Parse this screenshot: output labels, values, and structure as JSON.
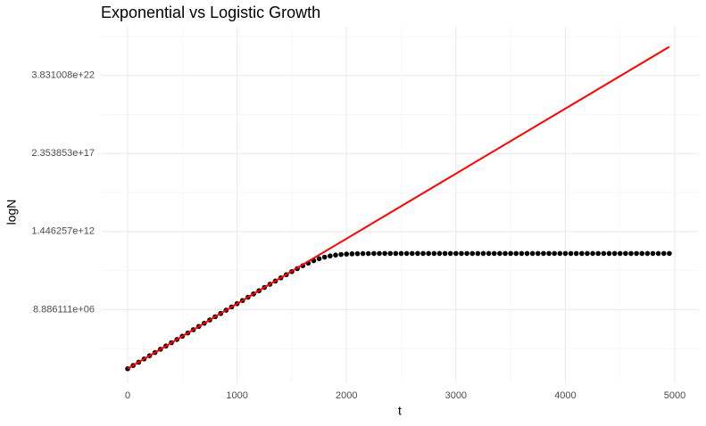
{
  "chart_data": {
    "type": "line",
    "title": "Exponential vs Logistic Growth",
    "x_label": "t",
    "y_label": "logN",
    "xlim": [
      -245,
      5220
    ],
    "xticks": [
      0,
      1000,
      2000,
      3000,
      4000,
      5000
    ],
    "ylim": [
      108,
      6.9e+25
    ],
    "log_y": true,
    "grid": true,
    "yticks": [
      {
        "value": 8886111,
        "label": "8.886111e+06"
      },
      {
        "value": 1446257000000.0,
        "label": "1.446257e+12"
      },
      {
        "value": 2.353853e+17,
        "label": "2.353853e+17"
      },
      {
        "value": 3.831008e+22,
        "label": "3.831008e+22"
      }
    ],
    "series": [
      {
        "type": "scatter",
        "color": "#000000",
        "x": [
          0,
          50,
          100,
          150,
          200,
          250,
          300,
          350,
          400,
          450,
          500,
          550,
          600,
          650,
          700,
          750,
          800,
          850,
          900,
          950,
          1000,
          1050,
          1100,
          1150,
          1200,
          1250,
          1300,
          1350,
          1400,
          1450,
          1500,
          1550,
          1600,
          1650,
          1700,
          1750,
          1800,
          1850,
          1900,
          1950,
          2000,
          2050,
          2100,
          2150,
          2200,
          2250,
          2300,
          2350,
          2400,
          2450,
          2500,
          2550,
          2600,
          2650,
          2700,
          2750,
          2800,
          2850,
          2900,
          2950,
          3000,
          3050,
          3100,
          3150,
          3200,
          3250,
          3300,
          3350,
          3400,
          3450,
          3500,
          3550,
          3600,
          3650,
          3700,
          3750,
          3800,
          3850,
          3900,
          3950,
          4000,
          4050,
          4100,
          4150,
          4200,
          4250,
          4300,
          4350,
          4400,
          4450,
          4500,
          4550,
          4600,
          4650,
          4700,
          4750,
          4800,
          4850,
          4900,
          4950
        ],
        "values": [
          1000,
          1649,
          2718,
          4482,
          7389,
          12182,
          20086,
          33115,
          54598,
          90017,
          148413,
          244692,
          403429,
          665142,
          1096633,
          1808042,
          2980958,
          4914769,
          8103084,
          13356160,
          22017000.0,
          36290000.0,
          59802000.0,
          98521000.0,
          162230000.0,
          266900000.0,
          438530000.0,
          718930000.0,
          1174400000.0,
          1907100000.0,
          3068400000.0,
          4865300000.0,
          7545200000.0,
          11331000000.0,
          16287000000.0,
          22168000000.0,
          28385000000.0,
          34203000000.0,
          39058000000.0,
          42738000000.0,
          45329000000.0,
          47059000000.0,
          48174000000.0,
          48876000000.0,
          49312000000.0,
          49581000000.0,
          49744000000.0,
          49845000000.0,
          49906000000.0,
          49943000000.0,
          49966000000.0,
          49979000000.0,
          49988000000.0,
          49993000000.0,
          49996000000.0,
          50000000000.0,
          50000000000.0,
          50000000000.0,
          50000000000.0,
          50000000000.0,
          50000000000.0,
          50000000000.0,
          50000000000.0,
          50000000000.0,
          50000000000.0,
          50000000000.0,
          50000000000.0,
          50000000000.0,
          50000000000.0,
          50000000000.0,
          50000000000.0,
          50000000000.0,
          50000000000.0,
          50000000000.0,
          50000000000.0,
          50000000000.0,
          50000000000.0,
          50000000000.0,
          50000000000.0,
          50000000000.0,
          50000000000.0,
          50000000000.0,
          50000000000.0,
          50000000000.0,
          50000000000.0,
          50000000000.0,
          50000000000.0,
          50000000000.0,
          50000000000.0,
          50000000000.0,
          50000000000.0,
          50000000000.0,
          50000000000.0,
          50000000000.0,
          50000000000.0,
          50000000000.0,
          50000000000.0,
          50000000000.0,
          50000000000.0,
          50000000000.0
        ]
      },
      {
        "type": "line",
        "color": "#ff0000",
        "x": [
          0,
          4950
        ],
        "values": [
          1000,
          3.1447e+24
        ]
      }
    ]
  }
}
